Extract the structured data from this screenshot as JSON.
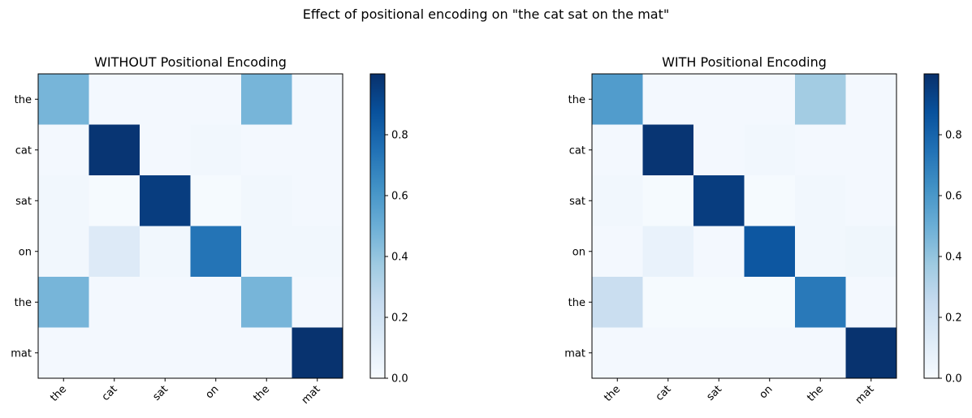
{
  "suptitle": "Effect of positional encoding on \"the cat sat on the mat\"",
  "chart_data": [
    {
      "type": "heatmap",
      "title": "WITHOUT Positional Encoding",
      "x_tick_labels": [
        "the",
        "cat",
        "sat",
        "on",
        "the",
        "mat"
      ],
      "y_tick_labels": [
        "the",
        "cat",
        "sat",
        "on",
        "the",
        "mat"
      ],
      "values": [
        [
          0.47,
          0.02,
          0.02,
          0.02,
          0.47,
          0.02
        ],
        [
          0.02,
          0.98,
          0.02,
          0.03,
          0.02,
          0.02
        ],
        [
          0.03,
          0.01,
          0.95,
          0.01,
          0.03,
          0.02
        ],
        [
          0.03,
          0.13,
          0.03,
          0.74,
          0.03,
          0.03
        ],
        [
          0.47,
          0.02,
          0.02,
          0.02,
          0.47,
          0.02
        ],
        [
          0.02,
          0.02,
          0.02,
          0.02,
          0.02,
          0.99
        ]
      ],
      "colormap": "Blues",
      "colorbar": {
        "ticks": [
          0.0,
          0.2,
          0.4,
          0.6,
          0.8
        ],
        "tick_labels": [
          "0.0",
          "0.2",
          "0.4",
          "0.6",
          "0.8"
        ],
        "range": [
          0,
          1
        ]
      }
    },
    {
      "type": "heatmap",
      "title": "WITH Positional Encoding",
      "x_tick_labels": [
        "the",
        "cat",
        "sat",
        "on",
        "the",
        "mat"
      ],
      "y_tick_labels": [
        "the",
        "cat",
        "sat",
        "on",
        "the",
        "mat"
      ],
      "values": [
        [
          0.58,
          0.02,
          0.02,
          0.02,
          0.36,
          0.02
        ],
        [
          0.02,
          0.98,
          0.02,
          0.03,
          0.02,
          0.02
        ],
        [
          0.03,
          0.01,
          0.95,
          0.01,
          0.03,
          0.02
        ],
        [
          0.02,
          0.07,
          0.02,
          0.85,
          0.03,
          0.04
        ],
        [
          0.23,
          0.01,
          0.01,
          0.01,
          0.72,
          0.02
        ],
        [
          0.02,
          0.02,
          0.02,
          0.02,
          0.02,
          0.99
        ]
      ],
      "colormap": "Blues",
      "colorbar": {
        "ticks": [
          0.0,
          0.2,
          0.4,
          0.6,
          0.8
        ],
        "tick_labels": [
          "0.0",
          "0.2",
          "0.4",
          "0.6",
          "0.8"
        ],
        "range": [
          0,
          1
        ]
      }
    }
  ]
}
